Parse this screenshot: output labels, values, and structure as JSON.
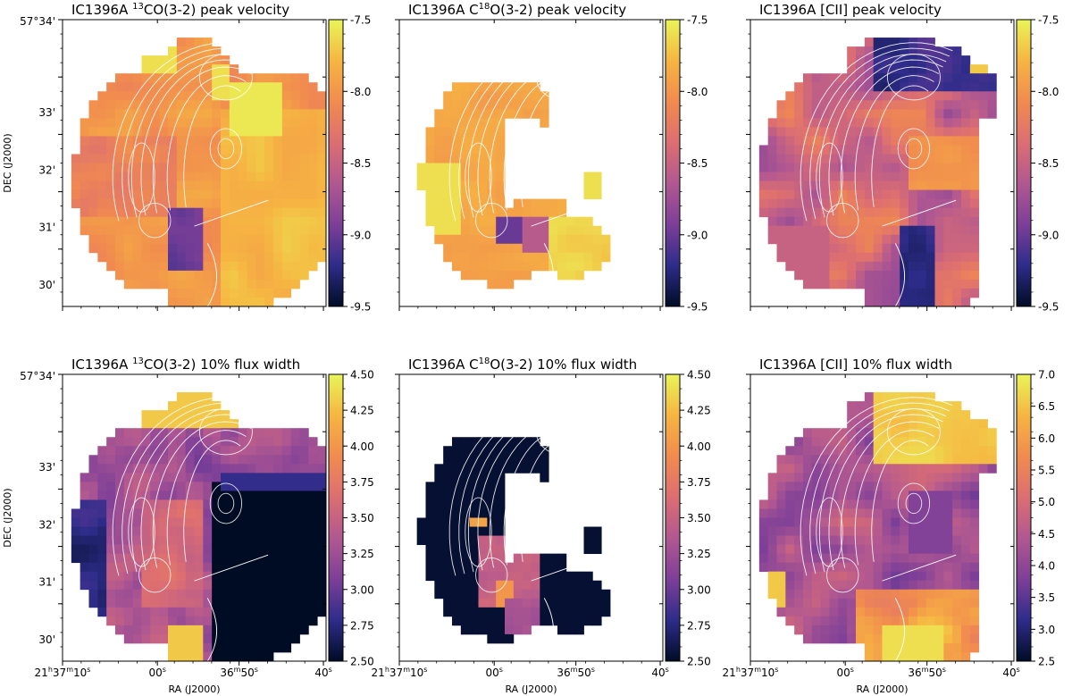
{
  "figure": {
    "object": "IC1396A",
    "axis_labels": {
      "xlabel": "RA (J2000)",
      "ylabel": "DEC (J2000)"
    },
    "ra_ticks": [
      {
        "h": "21",
        "m": "37",
        "s": "10"
      },
      {
        "s": "00"
      },
      {
        "m": "36",
        "s": "50"
      },
      {
        "s": "40"
      }
    ],
    "dec_ticks": [
      "57°34'",
      "33'",
      "32'",
      "31'",
      "30'"
    ],
    "colormap": [
      "#000c24",
      "#2e2c8a",
      "#7d3f98",
      "#b15891",
      "#dc6e72",
      "#f18b4f",
      "#f6b542",
      "#e9f558"
    ],
    "contour_color": "#ffffff"
  },
  "chart_data": [
    {
      "type": "heatmap",
      "title_prefix": "IC1396A",
      "title_pre": "",
      "title_sup": "13",
      "title_main": "CO(3-2) peak velocity",
      "colorbar_ticks": [
        "-7.5",
        "-8.0",
        "-8.5",
        "-9.0",
        "-9.5"
      ],
      "vmin": -9.5,
      "vmax": -7.5,
      "show_ylabels": true,
      "show_xlabels": false
    },
    {
      "type": "heatmap",
      "title_prefix": "IC1396A",
      "title_pre": "C",
      "title_sup": "18",
      "title_main": "O(3-2) peak velocity",
      "colorbar_ticks": [
        "-7.5",
        "-8.0",
        "-8.5",
        "-9.0",
        "-9.5"
      ],
      "vmin": -9.5,
      "vmax": -7.5,
      "show_ylabels": false,
      "show_xlabels": false
    },
    {
      "type": "heatmap",
      "title_prefix": "IC1396A",
      "title_pre": "",
      "title_sup": "",
      "title_main": "[CII] peak velocity",
      "colorbar_ticks": [
        "-7.5",
        "-8.0",
        "-8.5",
        "-9.0",
        "-9.5"
      ],
      "vmin": -9.5,
      "vmax": -7.5,
      "show_ylabels": false,
      "show_xlabels": false
    },
    {
      "type": "heatmap",
      "title_prefix": "IC1396A",
      "title_pre": "",
      "title_sup": "13",
      "title_main": "CO(3-2) 10% flux width",
      "colorbar_ticks": [
        "4.50",
        "4.25",
        "4.00",
        "3.75",
        "3.50",
        "3.25",
        "3.00",
        "2.75",
        "2.50"
      ],
      "vmin": 2.5,
      "vmax": 4.5,
      "show_ylabels": true,
      "show_xlabels": true
    },
    {
      "type": "heatmap",
      "title_prefix": "IC1396A",
      "title_pre": "C",
      "title_sup": "18",
      "title_main": "O(3-2) 10% flux width",
      "colorbar_ticks": [
        "4.50",
        "4.25",
        "4.00",
        "3.75",
        "3.50",
        "3.25",
        "3.00",
        "2.75",
        "2.50"
      ],
      "vmin": 2.5,
      "vmax": 4.5,
      "show_ylabels": false,
      "show_xlabels": true
    },
    {
      "type": "heatmap",
      "title_prefix": "IC1396A",
      "title_pre": "",
      "title_sup": "",
      "title_main": "[CII] 10% flux width",
      "colorbar_ticks": [
        "7.0",
        "6.5",
        "6.0",
        "5.5",
        "5.0",
        "4.5",
        "4.0",
        "3.5",
        "3.0",
        "2.5"
      ],
      "vmin": 2.5,
      "vmax": 7.0,
      "show_ylabels": false,
      "show_xlabels": true
    }
  ]
}
